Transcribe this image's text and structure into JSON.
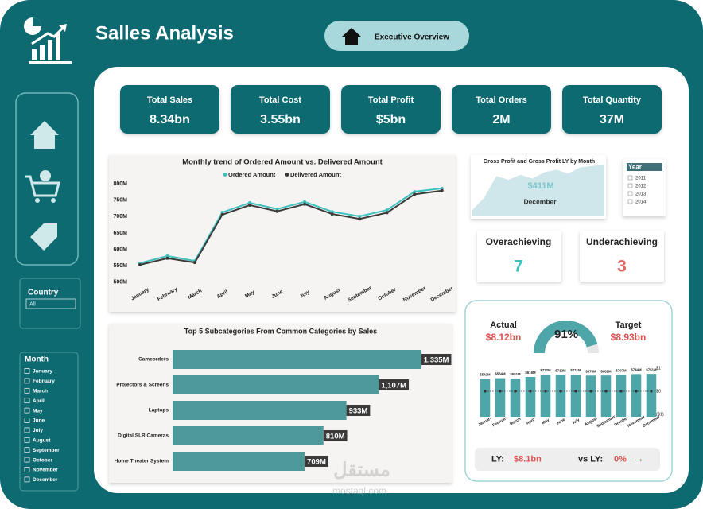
{
  "header": {
    "title": "Salles Analysis",
    "button": "Executive Overview"
  },
  "kpis": [
    {
      "label": "Total Sales",
      "value": "8.34bn"
    },
    {
      "label": "Total Cost",
      "value": "3.55bn"
    },
    {
      "label": "Total Profit",
      "value": "$5bn"
    },
    {
      "label": "Total Orders",
      "value": "2M"
    },
    {
      "label": "Total Quantity",
      "value": "37M"
    }
  ],
  "slicers": {
    "country": {
      "title": "Country",
      "value": "All"
    },
    "year": {
      "title": "Year",
      "items": [
        "2011",
        "2012",
        "2013",
        "2014"
      ]
    },
    "month": {
      "title": "Month",
      "items": [
        "January",
        "February",
        "March",
        "April",
        "May",
        "June",
        "July",
        "August",
        "September",
        "October",
        "November",
        "December"
      ]
    }
  },
  "cards": [
    {
      "label": "Overachieving",
      "value": 7,
      "color": "#3bbfbf"
    },
    {
      "label": "Underachieving",
      "value": 3,
      "color": "#e06666"
    }
  ],
  "gauge_panel": {
    "actual_label": "Actual",
    "actual": "$8.12bn",
    "target_label": "Target",
    "target": "$8.93bn",
    "ly_label": "LY:",
    "ly": "$8.1bn",
    "vs_label": "vs LY:",
    "vs": "0%",
    "arrow": "→"
  },
  "watermark": {
    "arabic": "مستقل",
    "latin": "mostaql.com"
  },
  "chart_data": [
    {
      "type": "line",
      "title": "Monthly trend of Ordered Amount vs. Delivered Amount",
      "categories": [
        "January",
        "February",
        "March",
        "April",
        "May",
        "June",
        "July",
        "August",
        "September",
        "October",
        "November",
        "December"
      ],
      "series": [
        {
          "name": "Ordered Amount",
          "color": "#3fc1c0",
          "values": [
            558,
            580,
            565,
            713,
            742,
            723,
            745,
            715,
            701,
            720,
            776,
            786
          ]
        },
        {
          "name": "Delivered Amount",
          "color": "#3a3a3a",
          "values": [
            553,
            573,
            560,
            706,
            735,
            716,
            738,
            708,
            693,
            712,
            768,
            779
          ]
        }
      ],
      "ylim": [
        490,
        810
      ],
      "yticks": [
        {
          "value": 500,
          "label": "500M"
        },
        {
          "value": 550,
          "label": "550M"
        },
        {
          "value": 600,
          "label": "600M"
        },
        {
          "value": 650,
          "label": "650M"
        },
        {
          "value": 700,
          "label": "700M"
        },
        {
          "value": 750,
          "label": "750M"
        },
        {
          "value": 800,
          "label": "800M"
        }
      ]
    },
    {
      "type": "area",
      "title": "Gross Profit and Gross Profit LY by Month",
      "categories": [
        null,
        null,
        null,
        null,
        null,
        null,
        null,
        null,
        null,
        null,
        null,
        null
      ],
      "values": [
        50,
        150,
        320,
        290,
        330,
        300,
        350,
        370,
        340,
        390,
        400,
        411
      ],
      "color": "#cfe6ea",
      "ylim": [
        0,
        430
      ],
      "annotations": [
        "$411M",
        "December"
      ]
    },
    {
      "type": "hbar",
      "title": "Top 5 Subcategories From Common Categories by Sales",
      "categories": [
        "Camcorders",
        "Projectors & Screens",
        "Laptops",
        "Digital SLR Cameras",
        "Home Theater System"
      ],
      "values": [
        1335,
        1107,
        933,
        810,
        709
      ],
      "value_labels": [
        "1,335M",
        "1,107M",
        "933M",
        "810M",
        "709M"
      ],
      "color": "#4e9a9a",
      "xlim": [
        0,
        1400
      ]
    },
    {
      "type": "gauge",
      "values": [
        91
      ],
      "value_labels": [
        "91%"
      ],
      "ylim": [
        0,
        100
      ],
      "color": "#4ea6a9"
    },
    {
      "type": "bar",
      "categories": [
        "January",
        "February",
        "March",
        "April",
        "May",
        "June",
        "July",
        "August",
        "September",
        "October",
        "November",
        "December"
      ],
      "series": [
        {
          "type": "bar",
          "color": "#4ea6a9",
          "values": [
            0.542,
            0.564,
            0.551,
            0.619,
            0.722,
            0.712,
            0.721,
            0.678,
            0.682,
            0.707,
            0.744,
            0.751
          ],
          "value_labels": [
            "$542M",
            "$564M",
            "$551M",
            "$619M",
            "$722M",
            "$712M",
            "$721M",
            "$678M",
            "$682M",
            "$707M",
            "$744M",
            "$751M"
          ]
        },
        {
          "type": "line",
          "color": "#333333",
          "values": [
            0,
            0,
            0,
            0,
            0,
            0,
            0,
            0,
            0,
            0,
            0,
            0
          ]
        }
      ],
      "ylim": [
        -1.1,
        1.1
      ],
      "yticks": [
        {
          "value": -1,
          "label": "($1)"
        },
        {
          "value": 0,
          "label": "$0"
        },
        {
          "value": 1,
          "label": "$1"
        }
      ]
    }
  ]
}
